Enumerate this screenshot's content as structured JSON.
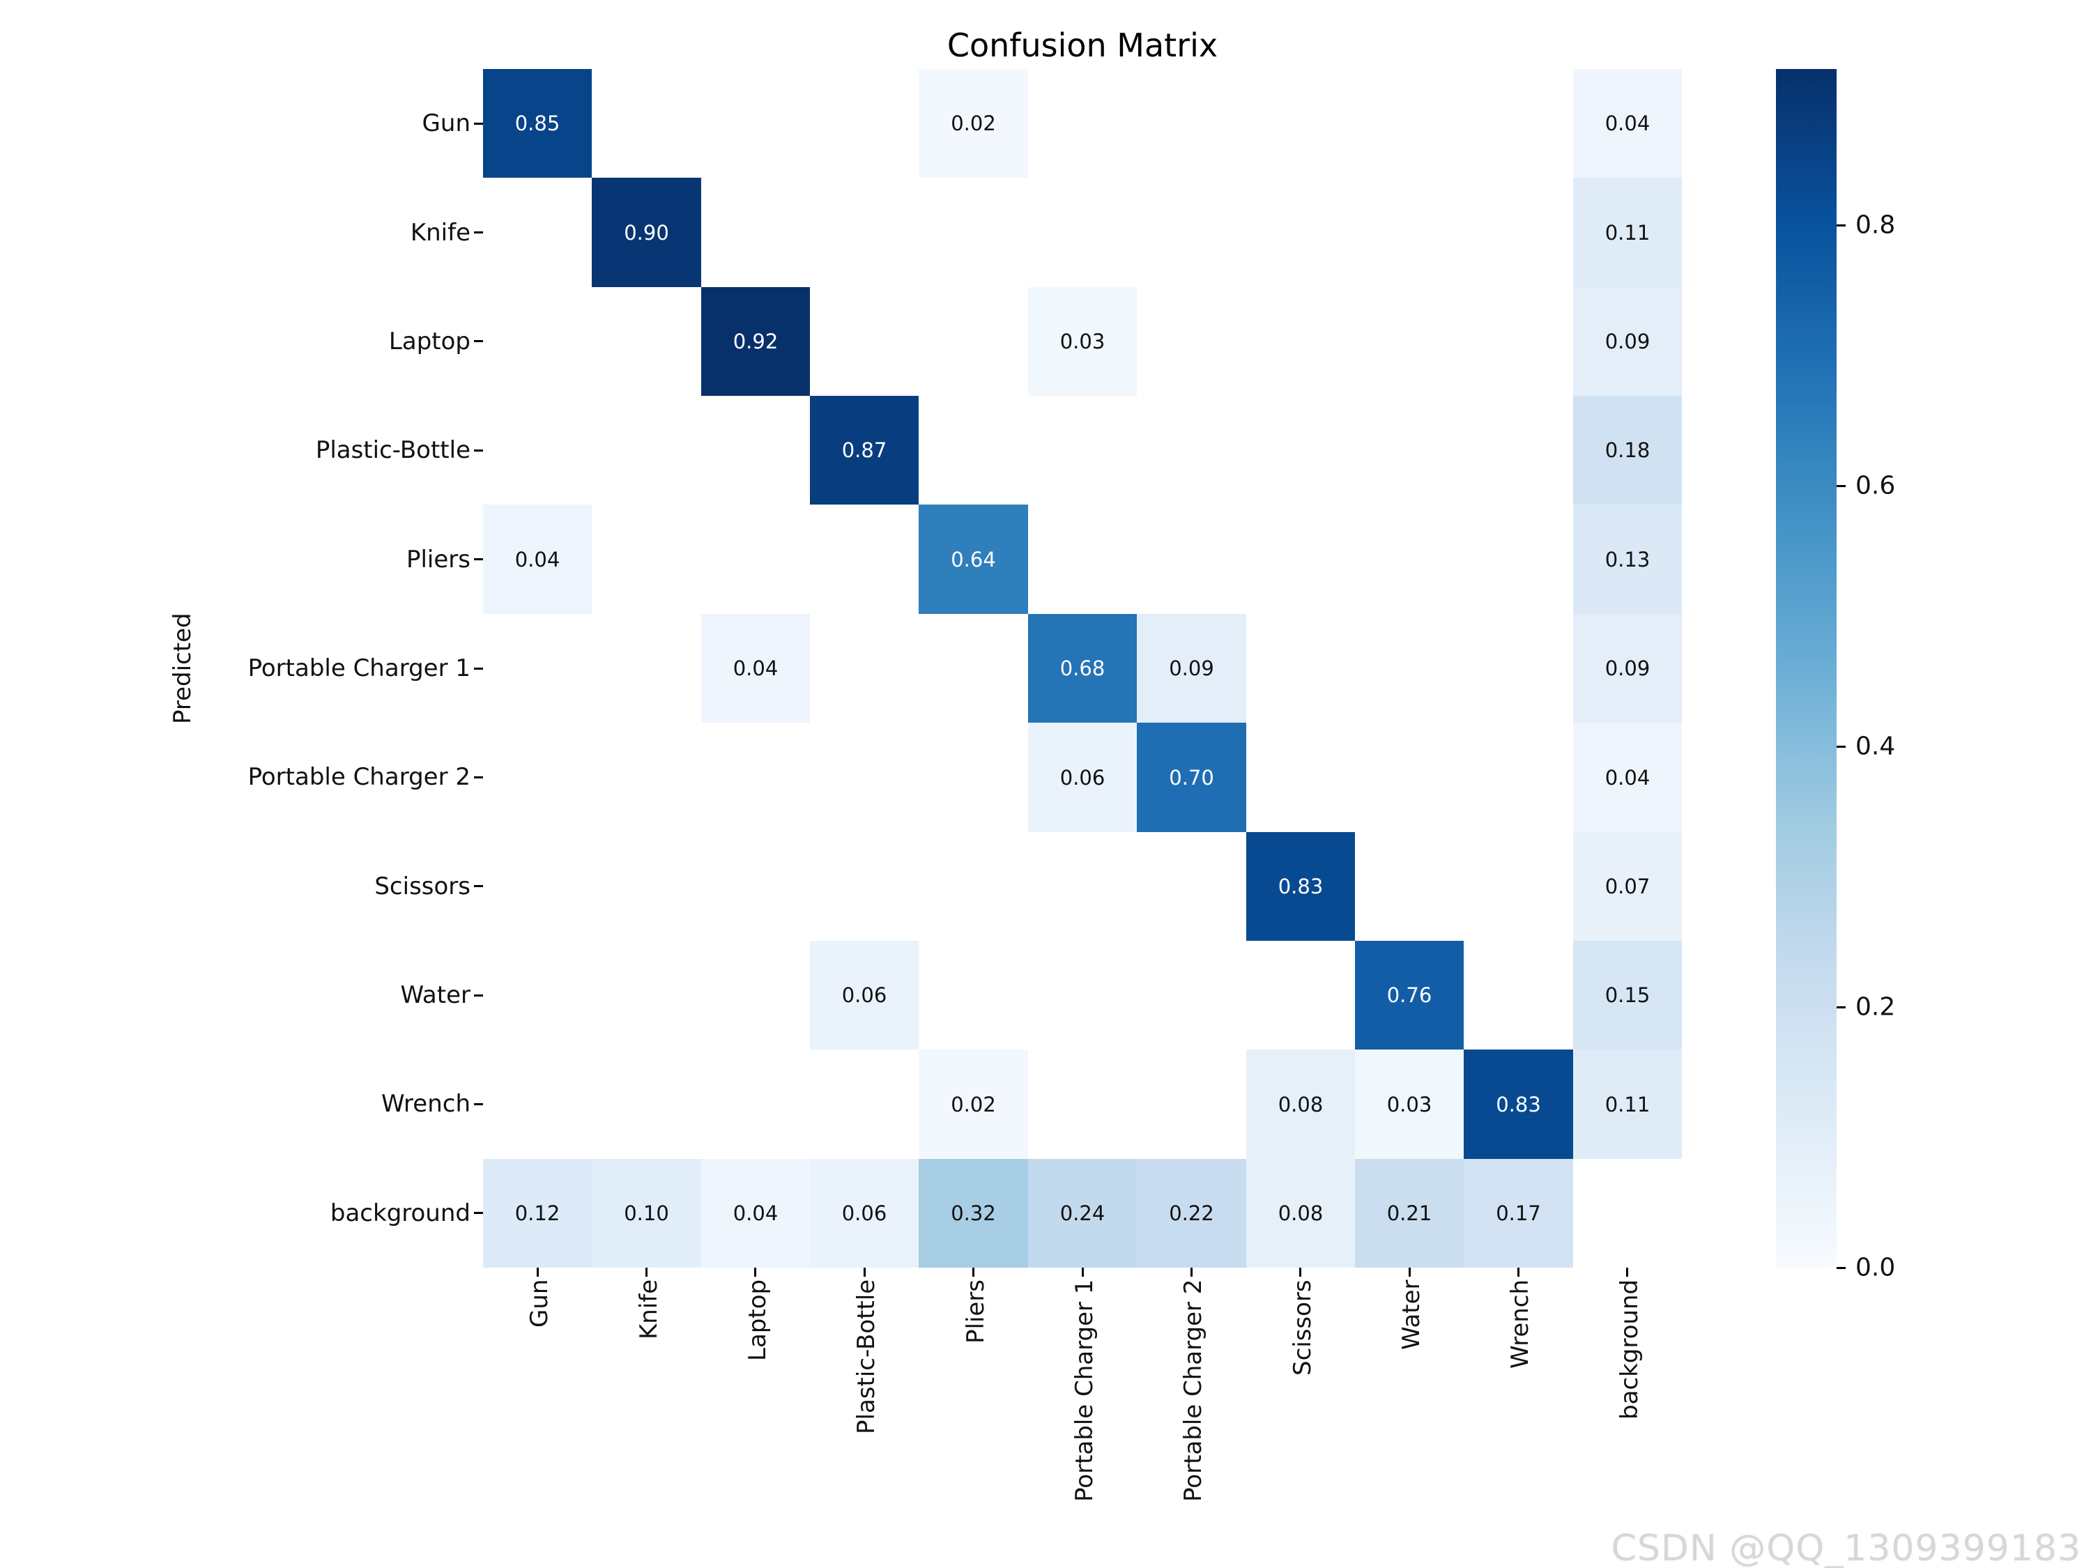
{
  "title": "Confusion Matrix",
  "ylabel": "Predicted",
  "watermark": "CSDN @QQ_1309399183",
  "chart_data": {
    "type": "heatmap",
    "title": "Confusion Matrix",
    "xlabel": "",
    "ylabel": "Predicted",
    "x_categories": [
      "Gun",
      "Knife",
      "Laptop",
      "Plastic-Bottle",
      "Pliers",
      "Portable Charger 1",
      "Portable Charger 2",
      "Scissors",
      "Water",
      "Wrench",
      "background"
    ],
    "y_categories": [
      "Gun",
      "Knife",
      "Laptop",
      "Plastic-Bottle",
      "Pliers",
      "Portable Charger 1",
      "Portable Charger 2",
      "Scissors",
      "Water",
      "Wrench",
      "background"
    ],
    "matrix": [
      [
        0.85,
        null,
        null,
        null,
        0.02,
        null,
        null,
        null,
        null,
        null,
        0.04
      ],
      [
        null,
        0.9,
        null,
        null,
        null,
        null,
        null,
        null,
        null,
        null,
        0.11
      ],
      [
        null,
        null,
        0.92,
        null,
        null,
        0.03,
        null,
        null,
        null,
        null,
        0.09
      ],
      [
        null,
        null,
        null,
        0.87,
        null,
        null,
        null,
        null,
        null,
        null,
        0.18
      ],
      [
        0.04,
        null,
        null,
        null,
        0.64,
        null,
        null,
        null,
        null,
        null,
        0.13
      ],
      [
        null,
        null,
        0.04,
        null,
        null,
        0.68,
        0.09,
        null,
        null,
        null,
        0.09
      ],
      [
        null,
        null,
        null,
        null,
        null,
        0.06,
        0.7,
        null,
        null,
        null,
        0.04
      ],
      [
        null,
        null,
        null,
        null,
        null,
        null,
        null,
        0.83,
        null,
        null,
        0.07
      ],
      [
        null,
        null,
        null,
        0.06,
        null,
        null,
        null,
        null,
        0.76,
        null,
        0.15
      ],
      [
        null,
        null,
        null,
        null,
        0.02,
        null,
        null,
        0.08,
        0.03,
        0.83,
        0.11
      ],
      [
        0.12,
        0.1,
        0.04,
        0.06,
        0.32,
        0.24,
        0.22,
        0.08,
        0.21,
        0.17,
        null
      ]
    ],
    "value_format": "two_decimals",
    "empty_cell_color": "#ffffff",
    "annotation_dark_text": "#111111",
    "annotation_light_text": "#ffffff",
    "vmin": 0.0,
    "vmax": 0.92,
    "colormap": "Blues",
    "colormap_stops": [
      "#f7fbff",
      "#deebf7",
      "#c6dbef",
      "#9ecae1",
      "#6baed6",
      "#4292c6",
      "#2171b5",
      "#08519c",
      "#08306b"
    ],
    "colorbar_ticks": [
      "0.0",
      "0.2",
      "0.4",
      "0.6",
      "0.8"
    ],
    "grid": false,
    "legend_position": "right-colorbar"
  }
}
